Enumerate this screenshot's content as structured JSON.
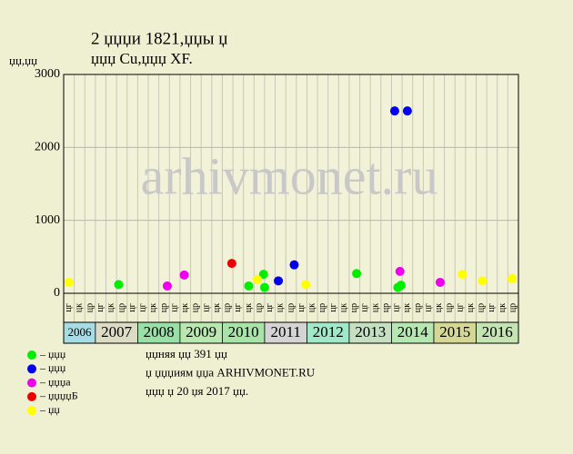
{
  "chart_data": {
    "type": "scatter",
    "title": "2 џџџи 1821,џџы џ",
    "subtitle": "џџџ Cu,џџџ XF.",
    "y_label": "џџ,џџ",
    "watermark": "arhivmonet.ru",
    "xlim": [
      0,
      43
    ],
    "ylim": [
      0,
      3000
    ],
    "yticks": [
      0,
      1000,
      2000,
      3000
    ],
    "grid": true,
    "categories": [
      "цг",
      "цк",
      "цр",
      "цг",
      "цк",
      "цр",
      "цг",
      "цг",
      "цк",
      "цр",
      "цг",
      "цк",
      "цр",
      "цг",
      "цк",
      "цр",
      "цг",
      "цк",
      "цр",
      "цг",
      "цк",
      "цр",
      "цг",
      "цк",
      "цр",
      "цг",
      "цк",
      "цр",
      "цг",
      "цк",
      "цр",
      "цг",
      "цк",
      "цр",
      "цг",
      "цк",
      "цр",
      "цг",
      "цк",
      "цр",
      "цг",
      "цк",
      "цр"
    ],
    "years": [
      "2006",
      "2007",
      "2008",
      "2009",
      "2010",
      "2011",
      "2012",
      "2013",
      "2014",
      "2015",
      "2016"
    ],
    "series": [
      {
        "name": "– џџџ",
        "color": "#00ee00",
        "x": [
          5.2,
          17.5,
          18.9,
          19.0,
          27.7,
          31.6,
          31.9
        ],
        "values": [
          120,
          100,
          260,
          80,
          270,
          80,
          110
        ]
      },
      {
        "name": "– џџџ",
        "color": "#0000ee",
        "x": [
          20.3,
          21.8,
          31.3,
          32.5
        ],
        "values": [
          170,
          390,
          2500,
          2500
        ]
      },
      {
        "name": "– џџџа",
        "color": "#ee00ee",
        "x": [
          9.8,
          11.4,
          31.8,
          35.6
        ],
        "values": [
          100,
          250,
          300,
          150
        ]
      },
      {
        "name": "– џџџџБ",
        "color": "#ee0000",
        "x": [
          15.9
        ],
        "values": [
          410
        ]
      },
      {
        "name": "– џџ",
        "color": "#ffff00",
        "x": [
          0.5,
          18.3,
          22.9,
          37.7,
          39.6,
          42.4
        ],
        "values": [
          150,
          190,
          120,
          260,
          170,
          200
        ]
      }
    ],
    "notes": [
      "џџняя џџ 391 џџ",
      "џ џџџиям џџа ARHIVMONET.RU",
      "џџџ џ 20 џя 2017 џџ."
    ]
  }
}
